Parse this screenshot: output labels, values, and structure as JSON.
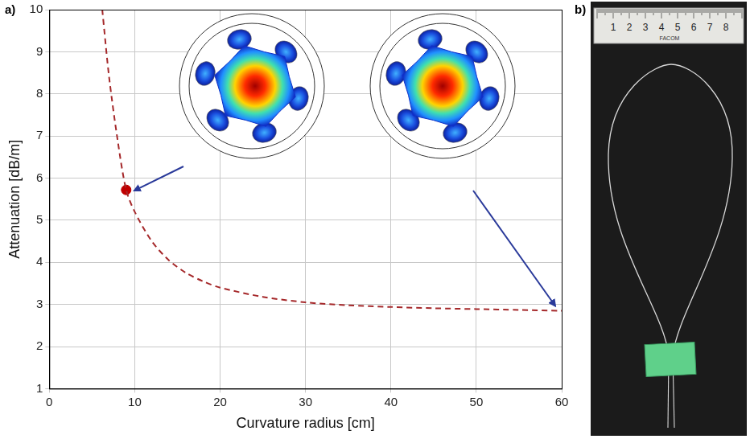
{
  "chart_data": {
    "type": "line",
    "panel_label": "a)",
    "x_label": "Curvature radius [cm]",
    "y_label": "Attenuation [dB/m]",
    "xlim": [
      0,
      60
    ],
    "xticks": [
      0,
      10,
      20,
      30,
      40,
      50,
      60
    ],
    "ylim": [
      1,
      10
    ],
    "yticks": [
      1,
      2,
      3,
      4,
      5,
      6,
      7,
      8,
      9,
      10
    ],
    "grid": true,
    "series": [
      {
        "type": "line",
        "color": "#a5282a",
        "line_style": "dashed",
        "x": [
          6.2,
          7,
          8,
          9,
          10,
          12,
          14,
          16,
          18,
          20,
          25,
          30,
          35,
          40,
          45,
          50,
          55,
          60
        ],
        "values": [
          10,
          8.4,
          6.9,
          5.72,
          5.2,
          4.5,
          4.05,
          3.75,
          3.55,
          3.4,
          3.18,
          3.05,
          2.98,
          2.94,
          2.91,
          2.89,
          2.87,
          2.85
        ]
      },
      {
        "type": "scatter",
        "color": "#c00000",
        "marker": "circle",
        "x": [
          9
        ],
        "values": [
          5.72
        ]
      }
    ]
  },
  "photo": {
    "panel_label": "b)",
    "ruler_labels": [
      "1",
      "2",
      "3",
      "4",
      "5",
      "6",
      "7",
      "8"
    ],
    "ruler_brand": "FACOM"
  }
}
